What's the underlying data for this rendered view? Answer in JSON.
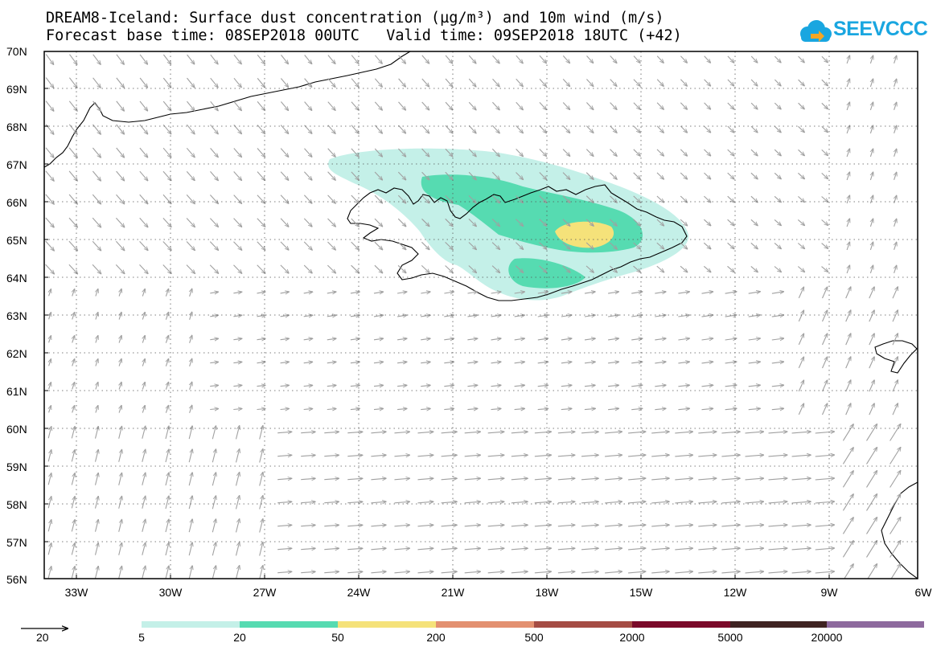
{
  "title": {
    "line1": "DREAM8-Iceland: Surface dust concentration (µg/m³) and 10m wind (m/s)",
    "line2": "Forecast base time: 08SEP2018 00UTC   Valid time: 09SEP2018 18UTC (+42)"
  },
  "logo": {
    "text": "SEEVCCC",
    "color": "#19a6e0"
  },
  "map": {
    "lat_labels": [
      "70N",
      "69N",
      "68N",
      "67N",
      "66N",
      "65N",
      "64N",
      "63N",
      "62N",
      "61N",
      "60N",
      "59N",
      "58N",
      "57N",
      "56N"
    ],
    "lon_labels": [
      "33W",
      "30W",
      "27W",
      "24W",
      "21W",
      "18W",
      "15W",
      "12W",
      "9W",
      "6W"
    ],
    "lon_range": [
      -34,
      -6
    ],
    "lat_range": [
      56,
      70
    ]
  },
  "legend": {
    "wind_reference": {
      "label": "20",
      "units": "m/s"
    },
    "levels": [
      "5",
      "20",
      "50",
      "200",
      "500",
      "2000",
      "5000",
      "20000"
    ],
    "colors": [
      "#c4f0e8",
      "#56dbb1",
      "#f5e27a",
      "#e39070",
      "#a54c44",
      "#7b0a2a",
      "#3f2322",
      "#8e6a9e"
    ]
  },
  "colors": {
    "wind_arrows": "#a0a0a0",
    "coastline": "#000000",
    "dust_5": "#c4f0e8",
    "dust_20": "#56dbb1",
    "dust_50": "#f5e27a"
  }
}
